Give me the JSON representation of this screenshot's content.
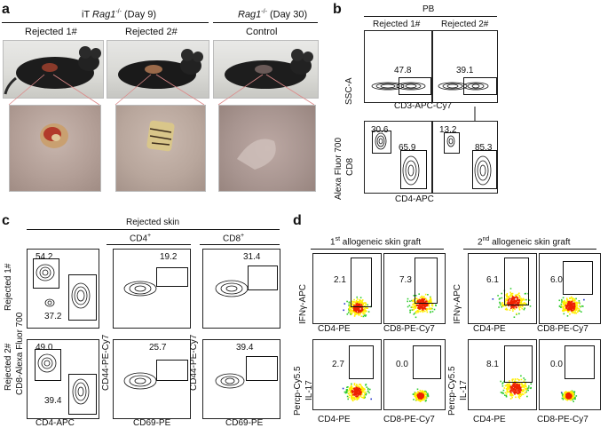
{
  "panels": {
    "a": "a",
    "b": "b",
    "c": "c",
    "d": "d"
  },
  "panel_a": {
    "group1_prefix": "iT ",
    "group1_gene": "Rag1",
    "group1_sup": "-/-",
    "group1_suffix": " (Day 9)",
    "group2_gene": "Rag1",
    "group2_sup": "-/-",
    "group2_suffix": " (Day 30)",
    "col1": "Rejected 1#",
    "col2": "Rejected 2#",
    "col3": "Control"
  },
  "panel_b": {
    "header": "PB",
    "col1": "Rejected 1#",
    "col2": "Rejected 2#",
    "ssc": "SSC-A",
    "cd3": "CD3-APC-Cy7",
    "y2a": "Alexa Fluor 700",
    "y2b": "CD8",
    "cd4": "CD4-APC",
    "v_r1_cd3": "47.8",
    "v_r2_cd3": "39.1",
    "v_r1_cd8": "30.6",
    "v_r1_cd4": "65.9",
    "v_r2_cd8": "13.2",
    "v_r2_cd4": "85.3"
  },
  "panel_c": {
    "header": "Rejected skin",
    "cd4_header_main": "CD4",
    "cd4_header_sup": "+",
    "cd8_header_main": "CD8",
    "cd8_header_sup": "+",
    "row1": "Rejected 1#",
    "row2": "Rejected 2#",
    "ylabel": "CD8-Alexa Fluor 700",
    "xlabel1": "CD4-APC",
    "ylabel2": "CD44-PE-Cy7",
    "ylabel3": "CD44-PE-Cy7",
    "xlabel2": "CD69-PE",
    "xlabel3": "CD69-PE",
    "v11a": "54.2",
    "v11b": "37.2",
    "v21a": "49.0",
    "v21b": "39.4",
    "v12": "19.2",
    "v22": "25.7",
    "v13": "31.4",
    "v23": "39.4"
  },
  "panel_d": {
    "title1_num": "1",
    "title1_sup": "st",
    "title1_rest": " allogeneic skin graft",
    "title2_num": "2",
    "title2_sup": "nd",
    "title2_rest": "  allogeneic skin graft",
    "y_ifn": "IFNγ-APC",
    "y_il17a": "Percp-Cy5.5",
    "y_il17b": "IL-17",
    "x_cd4": "CD4-PE",
    "x_cd8": "CD8-PE-Cy7",
    "v_1_ifn_cd4": "2.1",
    "v_1_ifn_cd8": "7.3",
    "v_1_il17_cd4": "2.7",
    "v_1_il17_cd8": "0.0",
    "v_2_ifn_cd4": "6.1",
    "v_2_ifn_cd8": "6.0",
    "v_2_il17_cd4": "8.1",
    "v_2_il17_cd8": "0.0"
  },
  "colors": {
    "mouse_dark": "#1a1a1a",
    "skin_tone": "#b8a49a",
    "wound_red": "#b23a2a",
    "heat_blue": "#2233cc",
    "heat_green": "#33cc33",
    "heat_yellow": "#ffee00",
    "heat_red": "#ee2200"
  }
}
